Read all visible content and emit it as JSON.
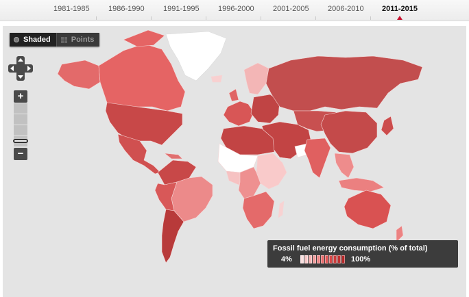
{
  "timeline": {
    "periods": [
      "1981-1985",
      "1986-1990",
      "1991-1995",
      "1996-2000",
      "2001-2005",
      "2006-2010",
      "2011-2015"
    ],
    "active_index": 6,
    "active_color": "#c8102e"
  },
  "map_toggle": {
    "shaded_label": "Shaded",
    "points_label": "Points",
    "selected": "shaded"
  },
  "zoom": {
    "zoom_in_label": "+",
    "zoom_out_label": "−"
  },
  "legend": {
    "title": "Fossil fuel energy consumption (% of total)",
    "min_label": "4%",
    "max_label": "100%",
    "colors": [
      "#fde2e2",
      "#f9c8c8",
      "#f5b0b0",
      "#f09898",
      "#eb8080",
      "#e66a6a",
      "#e05656",
      "#d94848",
      "#cf3c3c",
      "#c23232",
      "#b52828"
    ]
  },
  "palette": {
    "ocean": "#e4e4e4",
    "land_nodata": "#ffffff",
    "borders": "#ffffff"
  }
}
